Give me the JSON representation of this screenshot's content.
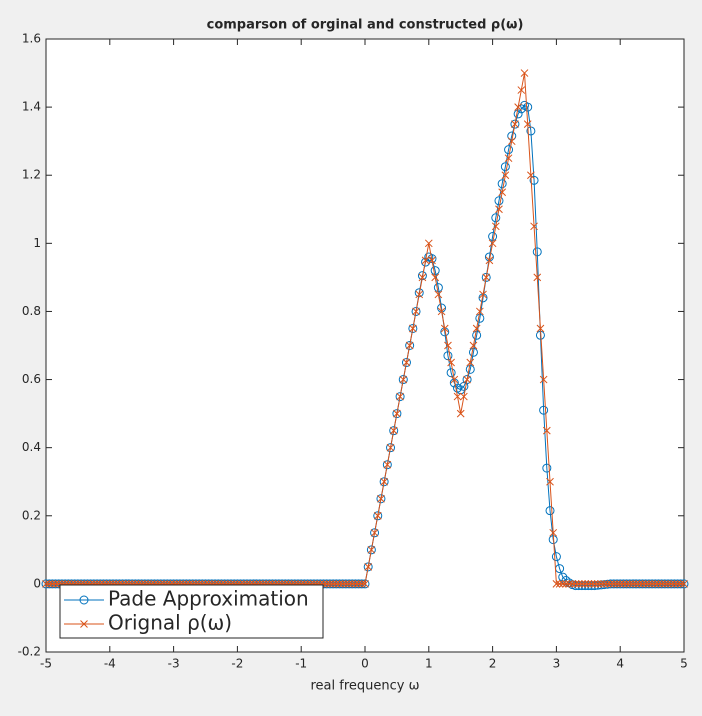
{
  "chart_data": {
    "type": "line",
    "title": "comparson of orginal and constructed ρ(ω)",
    "xlabel": "real frequency  ω",
    "x": [
      -5,
      -4.95,
      -4.9,
      -4.85,
      -4.8,
      -4.75,
      -4.7,
      -4.65,
      -4.6,
      -4.55,
      -4.5,
      -4.45,
      -4.4,
      -4.35,
      -4.3,
      -4.25,
      -4.2,
      -4.15,
      -4.1,
      -4.05,
      -4,
      -3.95,
      -3.9,
      -3.85,
      -3.8,
      -3.75,
      -3.7,
      -3.65,
      -3.6,
      -3.55,
      -3.5,
      -3.45,
      -3.4,
      -3.35,
      -3.3,
      -3.25,
      -3.2,
      -3.15,
      -3.1,
      -3.05,
      -3,
      -2.95,
      -2.9,
      -2.85,
      -2.8,
      -2.75,
      -2.7,
      -2.65,
      -2.6,
      -2.55,
      -2.5,
      -2.45,
      -2.4,
      -2.35,
      -2.3,
      -2.25,
      -2.2,
      -2.15,
      -2.1,
      -2.05,
      -2,
      -1.95,
      -1.9,
      -1.85,
      -1.8,
      -1.75,
      -1.7,
      -1.65,
      -1.6,
      -1.55,
      -1.5,
      -1.45,
      -1.4,
      -1.35,
      -1.3,
      -1.25,
      -1.2,
      -1.15,
      -1.1,
      -1.05,
      -1,
      -0.95,
      -0.9,
      -0.85,
      -0.8,
      -0.75,
      -0.7,
      -0.65,
      -0.6,
      -0.55,
      -0.5,
      -0.45,
      -0.4,
      -0.35,
      -0.3,
      -0.25,
      -0.2,
      -0.15,
      -0.1,
      -0.05,
      0,
      0.05,
      0.1,
      0.15,
      0.2,
      0.25,
      0.3,
      0.35,
      0.4,
      0.45,
      0.5,
      0.55,
      0.6,
      0.65,
      0.7,
      0.75,
      0.8,
      0.85,
      0.9,
      0.95,
      1,
      1.05,
      1.1,
      1.15,
      1.2,
      1.25,
      1.3,
      1.35,
      1.4,
      1.45,
      1.5,
      1.55,
      1.6,
      1.65,
      1.7,
      1.75,
      1.8,
      1.85,
      1.9,
      1.95,
      2,
      2.05,
      2.1,
      2.15,
      2.2,
      2.25,
      2.3,
      2.35,
      2.4,
      2.45,
      2.5,
      2.55,
      2.6,
      2.65,
      2.7,
      2.75,
      2.8,
      2.85,
      2.9,
      2.95,
      3,
      3.05,
      3.1,
      3.15,
      3.2,
      3.25,
      3.3,
      3.35,
      3.4,
      3.45,
      3.5,
      3.55,
      3.6,
      3.65,
      3.7,
      3.75,
      3.8,
      3.85,
      3.9,
      3.95,
      4,
      4.05,
      4.1,
      4.15,
      4.2,
      4.25,
      4.3,
      4.35,
      4.4,
      4.45,
      4.5,
      4.55,
      4.6,
      4.65,
      4.7,
      4.75,
      4.8,
      4.85,
      4.9,
      4.95,
      5
    ],
    "series": [
      {
        "name": "Pade Approximation",
        "color": "#0072bd",
        "marker": "o",
        "values": [
          0,
          0,
          0,
          0,
          0,
          0,
          0,
          0,
          0,
          0,
          0,
          0,
          0,
          0,
          0,
          0,
          0,
          0,
          0,
          0,
          0,
          0,
          0,
          0,
          0,
          0,
          0,
          0,
          0,
          0,
          0,
          0,
          0,
          0,
          0,
          0,
          0,
          0,
          0,
          0,
          0,
          0,
          0,
          0,
          0,
          0,
          0,
          0,
          0,
          0,
          0,
          0,
          0,
          0,
          0,
          0,
          0,
          0,
          0,
          0,
          0,
          0,
          0,
          0,
          0,
          0,
          0,
          0,
          0,
          0,
          0,
          0,
          0,
          0,
          0,
          0,
          0,
          0,
          0,
          0,
          0,
          0,
          0,
          0,
          0,
          0,
          0,
          0,
          0,
          0,
          0,
          0,
          0,
          0,
          0,
          0,
          0,
          0,
          0,
          0,
          0,
          0.05,
          0.1,
          0.15,
          0.2,
          0.25,
          0.3,
          0.35,
          0.4,
          0.45,
          0.5,
          0.55,
          0.6,
          0.65,
          0.7,
          0.75,
          0.8,
          0.855,
          0.905,
          0.945,
          0.96,
          0.955,
          0.92,
          0.87,
          0.81,
          0.74,
          0.67,
          0.62,
          0.59,
          0.575,
          0.57,
          0.58,
          0.6,
          0.63,
          0.68,
          0.73,
          0.78,
          0.84,
          0.9,
          0.96,
          1.02,
          1.075,
          1.125,
          1.175,
          1.225,
          1.275,
          1.315,
          1.35,
          1.38,
          1.395,
          1.405,
          1.4,
          1.33,
          1.185,
          0.975,
          0.73,
          0.51,
          0.34,
          0.215,
          0.13,
          0.08,
          0.045,
          0.02,
          0.01,
          0.003,
          -0.002,
          -0.005,
          -0.005,
          -0.005,
          -0.005,
          -0.005,
          -0.005,
          -0.005,
          -0.004,
          -0.003,
          -0.002,
          -0.001,
          0,
          0,
          0,
          0,
          0,
          0,
          0,
          0,
          0,
          0,
          0,
          0,
          0,
          0,
          0,
          0,
          0,
          0,
          0,
          0,
          0,
          0,
          0,
          0
        ]
      },
      {
        "name": "Orignal ρ(ω)",
        "color": "#d95319",
        "marker": "x",
        "values": [
          0,
          0,
          0,
          0,
          0,
          0,
          0,
          0,
          0,
          0,
          0,
          0,
          0,
          0,
          0,
          0,
          0,
          0,
          0,
          0,
          0,
          0,
          0,
          0,
          0,
          0,
          0,
          0,
          0,
          0,
          0,
          0,
          0,
          0,
          0,
          0,
          0,
          0,
          0,
          0,
          0,
          0,
          0,
          0,
          0,
          0,
          0,
          0,
          0,
          0,
          0,
          0,
          0,
          0,
          0,
          0,
          0,
          0,
          0,
          0,
          0,
          0,
          0,
          0,
          0,
          0,
          0,
          0,
          0,
          0,
          0,
          0,
          0,
          0,
          0,
          0,
          0,
          0,
          0,
          0,
          0,
          0,
          0,
          0,
          0,
          0,
          0,
          0,
          0,
          0,
          0,
          0,
          0,
          0,
          0,
          0,
          0,
          0,
          0,
          0,
          0,
          0.05,
          0.1,
          0.15,
          0.2,
          0.25,
          0.3,
          0.35,
          0.4,
          0.45,
          0.5,
          0.55,
          0.6,
          0.65,
          0.7,
          0.75,
          0.8,
          0.85,
          0.9,
          0.95,
          1,
          0.95,
          0.9,
          0.85,
          0.8,
          0.75,
          0.7,
          0.65,
          0.6,
          0.55,
          0.5,
          0.55,
          0.6,
          0.65,
          0.7,
          0.75,
          0.8,
          0.85,
          0.9,
          0.95,
          1,
          1.05,
          1.1,
          1.15,
          1.2,
          1.25,
          1.3,
          1.35,
          1.4,
          1.45,
          1.5,
          1.35,
          1.2,
          1.05,
          0.9,
          0.75,
          0.6,
          0.45,
          0.3,
          0.15,
          0,
          0,
          0,
          0,
          0,
          0,
          0,
          0,
          0,
          0,
          0,
          0,
          0,
          0,
          0,
          0,
          0,
          0,
          0,
          0,
          0,
          0,
          0,
          0,
          0,
          0,
          0,
          0,
          0,
          0,
          0,
          0,
          0,
          0,
          0,
          0,
          0,
          0,
          0,
          0,
          0
        ]
      }
    ],
    "xlim": [
      -5,
      5
    ],
    "xticks": [
      -5,
      -4,
      -3,
      -2,
      -1,
      0,
      1,
      2,
      3,
      4,
      5
    ],
    "ylim": [
      -0.2,
      1.6
    ],
    "yticks": [
      -0.2,
      0,
      0.2,
      0.4,
      0.6,
      0.8,
      1,
      1.2,
      1.4,
      1.6
    ],
    "grid": false,
    "legend": "lower left"
  }
}
